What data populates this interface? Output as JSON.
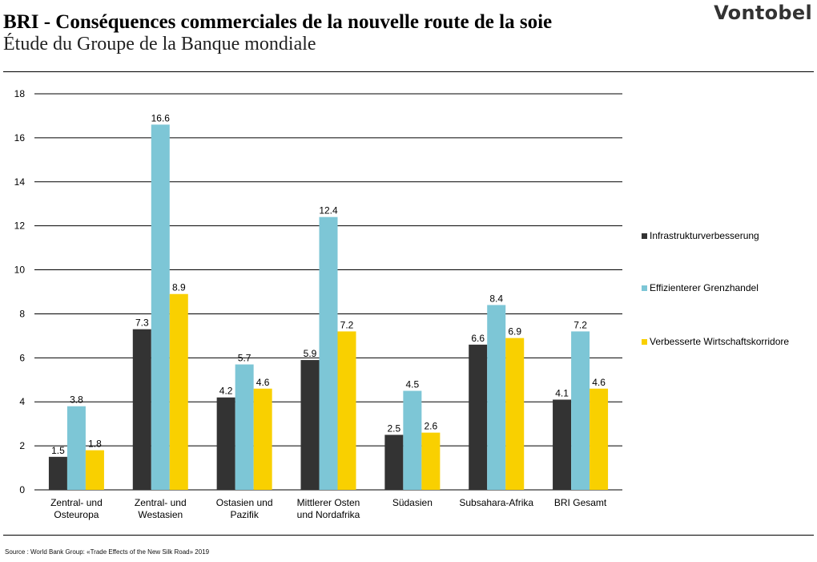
{
  "header": {
    "title": "BRI - Conséquences commerciales de la nouvelle route de la soie",
    "subtitle": "Étude du Groupe de la Banque mondiale",
    "logo_text": "Vontobel"
  },
  "footer": {
    "source": "Source : World Bank Group: «Trade Effects of the New Silk Road» 2019"
  },
  "chart_data": {
    "type": "bar",
    "categories": [
      [
        "Zentral- und",
        "Osteuropa"
      ],
      [
        "Zentral- und",
        "Westasien"
      ],
      [
        "Ostasien und",
        "Pazifik"
      ],
      [
        "Mittlerer Osten",
        "und Nordafrika"
      ],
      [
        "Südasien"
      ],
      [
        "Subsahara-Afrika"
      ],
      [
        "BRI Gesamt"
      ]
    ],
    "series": [
      {
        "name": "Infrastrukturverbesserung",
        "color": "#333333",
        "values": [
          1.5,
          7.3,
          4.2,
          5.9,
          2.5,
          6.6,
          4.1
        ]
      },
      {
        "name": "Effizienterer Grenzhandel",
        "color": "#7dc6d6",
        "values": [
          3.8,
          16.6,
          5.7,
          12.4,
          4.5,
          8.4,
          7.2
        ]
      },
      {
        "name": "Verbesserte Wirtschaftskorridore",
        "color": "#f9d000",
        "values": [
          1.8,
          8.9,
          4.6,
          7.2,
          2.6,
          6.9,
          4.6
        ]
      }
    ],
    "ylim": [
      0,
      18
    ],
    "yticks": [
      0,
      2,
      4,
      6,
      8,
      10,
      12,
      14,
      16,
      18
    ],
    "grid": true,
    "legend_position": "right",
    "xlabel": "",
    "ylabel": ""
  }
}
